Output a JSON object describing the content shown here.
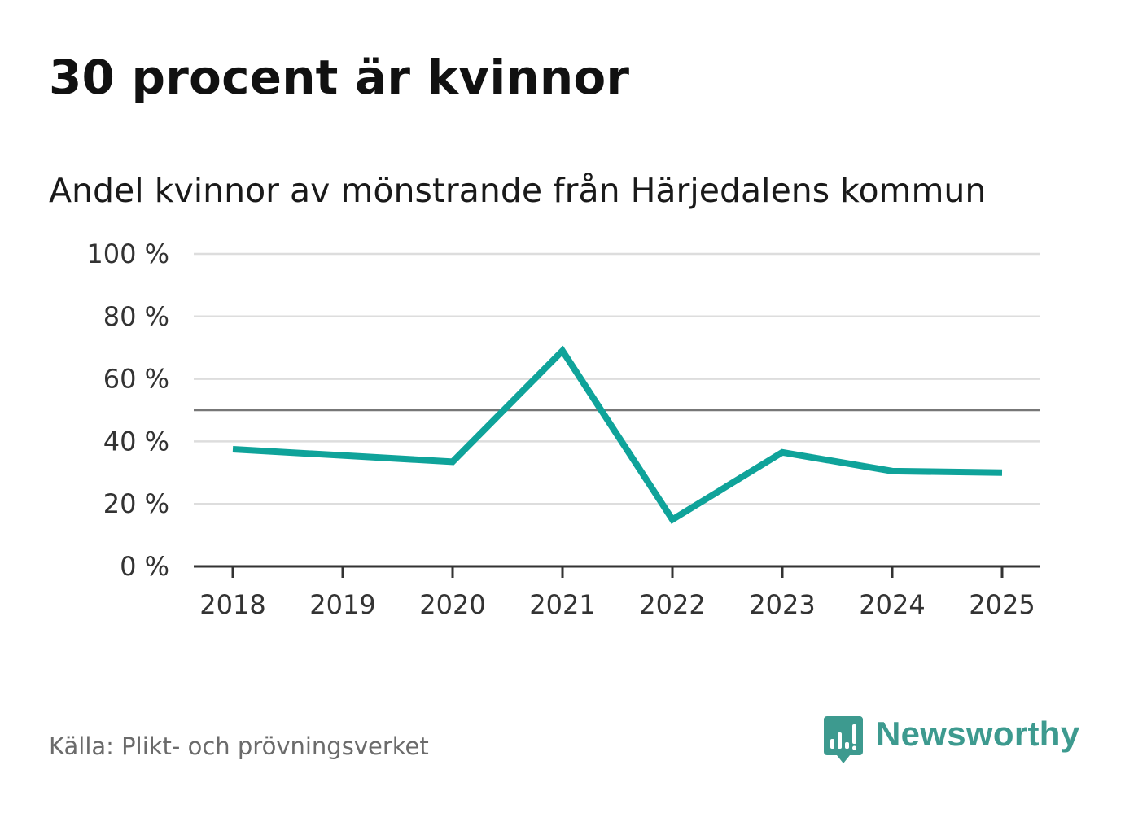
{
  "header": {
    "title": "30 procent är kvinnor",
    "subtitle": "Andel kvinnor av mönstrande från Härjedalens kommun"
  },
  "footer": {
    "source": "Källa: Plikt- och prövningsverket",
    "brand": "Newsworthy",
    "brand_icon": "bar-chart-speech-bubble-icon"
  },
  "colors": {
    "line": "#0fa39a",
    "grid": "#dddddd",
    "reference": "#777777",
    "axis": "#333333",
    "brand": "#3d9a8f"
  },
  "chart_data": {
    "type": "line",
    "title": "Andel kvinnor av mönstrande från Härjedalens kommun",
    "xlabel": "",
    "ylabel": "",
    "categories": [
      "2018",
      "2019",
      "2020",
      "2021",
      "2022",
      "2023",
      "2024",
      "2025"
    ],
    "series": [
      {
        "name": "Andel kvinnor",
        "values": [
          37.5,
          35.5,
          33.5,
          69,
          15,
          36.5,
          30.5,
          30
        ]
      }
    ],
    "ylim": [
      0,
      100
    ],
    "yticks": [
      0,
      20,
      40,
      60,
      80,
      100
    ],
    "ytick_labels": [
      "0 %",
      "20 %",
      "40 %",
      "60 %",
      "80 %",
      "100 %"
    ],
    "reference_line": 50,
    "grid": true,
    "legend": "none"
  }
}
